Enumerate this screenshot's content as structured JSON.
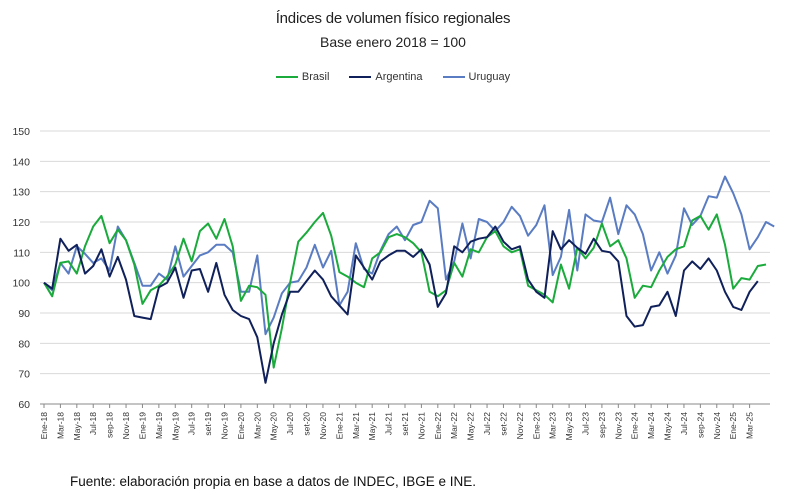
{
  "chart_data": {
    "type": "line",
    "title": "Índices de volumen físico regionales",
    "subtitle": "Base enero 2018 = 100",
    "xlabel": "",
    "ylabel": "",
    "ylim": [
      60,
      150
    ],
    "yticks": [
      60,
      70,
      80,
      90,
      100,
      110,
      120,
      130,
      140,
      150
    ],
    "grid": true,
    "legend_position": "top-center",
    "x_tick_labels": [
      "Ene-18",
      "Mar-18",
      "May-18",
      "Jul-18",
      "Sep-18",
      "Nov-18",
      "Ene-19",
      "Mar-19",
      "May-19",
      "Jul-19",
      "Sep-19",
      "Nov-19",
      "Ene-20",
      "Mar-20",
      "May-20",
      "Jul-20",
      "Sep-20",
      "Nov-20",
      "Ene-21",
      "Mar-21",
      "May-21",
      "Jul-21",
      "Sep-21",
      "Nov-21",
      "Ene-22",
      "Mar-22",
      "May-22",
      "Jul-22",
      "Sep-22",
      "Nov-22",
      "Ene-23",
      "Mar-23",
      "May-23",
      "Jul-23",
      "Sep-23",
      "Nov-23",
      "Ene-24",
      "Mar-24",
      "May-24",
      "Jul-24",
      "Sep-24",
      "Nov-24",
      "Ene-25",
      "Mar-25"
    ],
    "x_tick_labels_display": [
      "Ene-18",
      "Mar-18",
      "May-18",
      "Jul-18",
      "sep-18",
      "Nov-18",
      "Ene-19",
      "Mar-19",
      "May-19",
      "Jul-19",
      "set-19",
      "Nov-19",
      "Ene-20",
      "Mar-20",
      "May-20",
      "Jul-20",
      "set-20",
      "Nov-20",
      "Ene-21",
      "Mar-21",
      "May-21",
      "Jul-21",
      "set-21",
      "Nov-21",
      "Ene-22",
      "Mar-22",
      "May-22",
      "Jul-22",
      "set-22",
      "Nov-22",
      "Ene-23",
      "Mar-23",
      "May-23",
      "Jul-23",
      "sep-23",
      "Nov-23",
      "Ene-24",
      "Mar-24",
      "May-24",
      "Jul-24",
      "sep-24",
      "Nov-24",
      "Ene-25",
      "Mar-25"
    ],
    "series": [
      {
        "name": "Brasil",
        "color": "#1aab3c",
        "values": [
          100,
          95.5,
          106.5,
          107,
          103,
          112,
          118.5,
          122,
          113,
          117.5,
          114,
          106,
          93,
          97.5,
          99,
          102,
          106,
          114.5,
          107,
          117,
          119.5,
          114.5,
          121,
          112,
          94,
          99,
          98.5,
          96,
          72,
          85,
          100,
          113.5,
          116.5,
          120,
          123,
          115.5,
          103.5,
          102,
          100,
          98.5,
          108,
          110,
          115,
          116,
          115,
          113,
          110,
          97,
          95.5,
          97.5,
          106.5,
          102,
          111,
          110,
          115,
          117,
          112,
          110,
          111,
          99,
          97.5,
          96,
          93.5,
          106,
          98,
          111.5,
          108,
          111.5,
          119.5,
          112,
          114,
          108,
          95,
          99,
          98.5,
          104,
          108.5,
          111,
          112,
          120.5,
          122,
          117.5,
          122.5,
          112.5,
          98,
          101.5,
          101,
          105.5,
          106
        ]
      },
      {
        "name": "Argentina",
        "color": "#10205a",
        "values": [
          100,
          98,
          114.5,
          110.5,
          112.5,
          103,
          105.5,
          111,
          102,
          108.5,
          101,
          89,
          88.5,
          88,
          98.5,
          100,
          105,
          95,
          104,
          104.5,
          97,
          106.5,
          96,
          91,
          89,
          88,
          82,
          67,
          80,
          89.5,
          97,
          97,
          100.5,
          104,
          101,
          95.5,
          92.5,
          89.5,
          109,
          105,
          101,
          107,
          109,
          110.5,
          110.5,
          108.5,
          111,
          106,
          92,
          96.5,
          112,
          110,
          113.5,
          114.5,
          115,
          118.5,
          113.5,
          111,
          112,
          101,
          97,
          95,
          117,
          111,
          114,
          111.5,
          109.5,
          114.5,
          110.5,
          110,
          107,
          89,
          85.5,
          86,
          92,
          92.5,
          97,
          89,
          104,
          107,
          104.5,
          108,
          104,
          97,
          92,
          91,
          97,
          100.5
        ]
      },
      {
        "name": "Uruguay",
        "color": "#5a7cc2",
        "values": [
          100,
          97.5,
          106.5,
          103,
          112,
          109.5,
          106.5,
          108,
          104,
          118.5,
          114,
          106.5,
          99,
          99,
          103,
          101,
          112,
          102,
          105.5,
          109,
          110,
          112.5,
          112.5,
          110,
          97,
          97,
          109,
          83,
          88.5,
          96.5,
          100,
          100.5,
          105,
          112.5,
          105,
          110.5,
          92.5,
          97,
          113,
          104.5,
          103,
          110.5,
          116,
          118.5,
          114,
          119,
          120,
          127,
          124.5,
          101,
          107,
          119.5,
          108,
          121,
          120,
          117,
          120,
          125,
          122,
          115.5,
          119,
          125.5,
          102.5,
          108.5,
          124,
          104,
          122.5,
          120.5,
          120,
          128,
          116,
          125.5,
          122.5,
          116,
          104,
          110,
          103,
          109,
          124.5,
          119,
          122,
          128.5,
          128,
          135,
          129.5,
          122.5,
          111,
          115,
          120,
          118.5
        ]
      }
    ]
  },
  "source_note": "Fuente: elaboración propia en base a datos de INDEC, IBGE e INE."
}
